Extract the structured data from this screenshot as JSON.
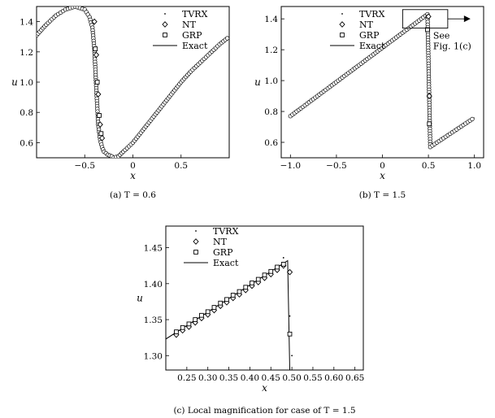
{
  "chart_data": [
    {
      "type": "scatter",
      "caption": "(a) T = 0.6",
      "xlabel": "x",
      "ylabel": "u",
      "xlim": [
        -1,
        1
      ],
      "ylim": [
        0.5,
        1.5
      ],
      "xticks": [
        -0.5,
        0,
        0.5
      ],
      "xtick_labels": [
        "−0.5",
        "0",
        "0.5"
      ],
      "yticks": [
        0.6,
        0.8,
        1.0,
        1.2,
        1.4
      ],
      "ytick_labels": [
        "0.6",
        "0.8",
        "1.0",
        "1.2",
        "1.4"
      ],
      "legend": [
        "TVRX",
        "NT",
        "GRP",
        "Exact"
      ],
      "legend_position": "top-right",
      "grid": false,
      "series": [
        {
          "name": "Exact",
          "style": "line",
          "x": [
            -1.0,
            -0.9,
            -0.8,
            -0.7,
            -0.6,
            -0.5,
            -0.45,
            -0.42,
            -0.4,
            -0.38,
            -0.36,
            -0.34,
            -0.32,
            -0.3,
            -0.26,
            -0.22,
            -0.2,
            -0.15,
            -0.1,
            0.0,
            0.1,
            0.2,
            0.3,
            0.4,
            0.5,
            0.6,
            0.7,
            0.8,
            0.9,
            1.0
          ],
          "y": [
            1.31,
            1.38,
            1.44,
            1.48,
            1.5,
            1.48,
            1.43,
            1.36,
            1.22,
            0.96,
            0.72,
            0.62,
            0.57,
            0.54,
            0.52,
            0.51,
            0.5,
            0.51,
            0.54,
            0.6,
            0.68,
            0.76,
            0.84,
            0.92,
            1.0,
            1.07,
            1.13,
            1.19,
            1.25,
            1.3
          ]
        },
        {
          "name": "NT",
          "style": "diamond",
          "x": [
            -0.4,
            -0.38,
            -0.36,
            -0.34,
            -0.32
          ],
          "y": [
            1.4,
            1.18,
            0.92,
            0.72,
            0.63
          ]
        },
        {
          "name": "GRP",
          "style": "square",
          "x": [
            -0.39,
            -0.37,
            -0.35,
            -0.33
          ],
          "y": [
            1.22,
            1.0,
            0.78,
            0.66
          ]
        }
      ]
    },
    {
      "type": "scatter",
      "caption": "(b) T = 1.5",
      "xlabel": "x",
      "ylabel": "u",
      "xlim": [
        -1.1,
        1.1
      ],
      "ylim": [
        0.5,
        1.48
      ],
      "xticks": [
        -1,
        -0.5,
        0,
        0.5,
        1
      ],
      "xtick_labels": [
        "−1.0",
        "−0.5",
        "0",
        "0.5",
        "1.0"
      ],
      "yticks": [
        0.6,
        0.8,
        1.0,
        1.2,
        1.4
      ],
      "ytick_labels": [
        "0.6",
        "0.8",
        "1.0",
        "1.2",
        "1.4"
      ],
      "legend": [
        "TVRX",
        "NT",
        "GRP",
        "Exact"
      ],
      "legend_position": "top-right",
      "annotation": [
        "See",
        "Fig. 1(c)"
      ],
      "zoom_box": {
        "x": [
          0.22,
          0.71
        ],
        "y": [
          1.34,
          1.46
        ]
      },
      "grid": false,
      "series": [
        {
          "name": "Exact",
          "style": "line",
          "x": [
            -1.0,
            0.49,
            0.52,
            1.0
          ],
          "y": [
            0.77,
            1.43,
            0.57,
            0.76
          ]
        },
        {
          "name": "NT",
          "style": "diamond",
          "x": [
            0.5,
            0.51
          ],
          "y": [
            1.415,
            0.9
          ]
        },
        {
          "name": "GRP",
          "style": "square",
          "x": [
            0.49,
            0.51
          ],
          "y": [
            1.33,
            0.72
          ]
        }
      ]
    },
    {
      "type": "scatter",
      "caption": "(c) Local magnification for case of  T = 1.5",
      "xlabel": "x",
      "ylabel": "u",
      "xlim": [
        0.2,
        0.67
      ],
      "ylim": [
        1.28,
        1.48
      ],
      "xticks": [
        0.25,
        0.3,
        0.35,
        0.4,
        0.45,
        0.5,
        0.55,
        0.6,
        0.65
      ],
      "xtick_labels": [
        "0.25",
        "0.30",
        "0.35",
        "0.40",
        "0.45",
        "0.50",
        "0.55",
        "0.60",
        "0.65"
      ],
      "yticks": [
        1.3,
        1.35,
        1.4,
        1.45
      ],
      "ytick_labels": [
        "1.30",
        "1.35",
        "1.40",
        "1.45"
      ],
      "legend": [
        "TVRX",
        "NT",
        "GRP",
        "Exact"
      ],
      "legend_position": "top-left",
      "grid": false,
      "series": [
        {
          "name": "Exact",
          "style": "line",
          "x": [
            0.2,
            0.49,
            0.49,
            0.495
          ],
          "y": [
            1.323,
            1.432,
            1.432,
            1.28
          ]
        },
        {
          "name": "NT",
          "style": "diamond",
          "x": [
            0.225,
            0.24,
            0.255,
            0.27,
            0.285,
            0.3,
            0.315,
            0.33,
            0.345,
            0.36,
            0.375,
            0.39,
            0.405,
            0.42,
            0.435,
            0.45,
            0.465,
            0.48,
            0.495
          ],
          "y": [
            1.329,
            1.335,
            1.34,
            1.346,
            1.352,
            1.357,
            1.363,
            1.369,
            1.374,
            1.38,
            1.385,
            1.391,
            1.397,
            1.402,
            1.408,
            1.413,
            1.419,
            1.425,
            1.416
          ]
        },
        {
          "name": "GRP",
          "style": "square",
          "x": [
            0.225,
            0.24,
            0.255,
            0.27,
            0.285,
            0.3,
            0.315,
            0.33,
            0.345,
            0.36,
            0.375,
            0.39,
            0.405,
            0.42,
            0.435,
            0.45,
            0.465,
            0.48,
            0.495
          ],
          "y": [
            1.333,
            1.339,
            1.344,
            1.35,
            1.356,
            1.361,
            1.367,
            1.373,
            1.378,
            1.384,
            1.389,
            1.395,
            1.401,
            1.406,
            1.412,
            1.417,
            1.423,
            1.427,
            1.33
          ]
        },
        {
          "name": "TVRX",
          "style": "dot",
          "x": [
            0.48,
            0.495,
            0.5
          ],
          "y": [
            1.436,
            1.355,
            1.3
          ]
        }
      ]
    }
  ]
}
